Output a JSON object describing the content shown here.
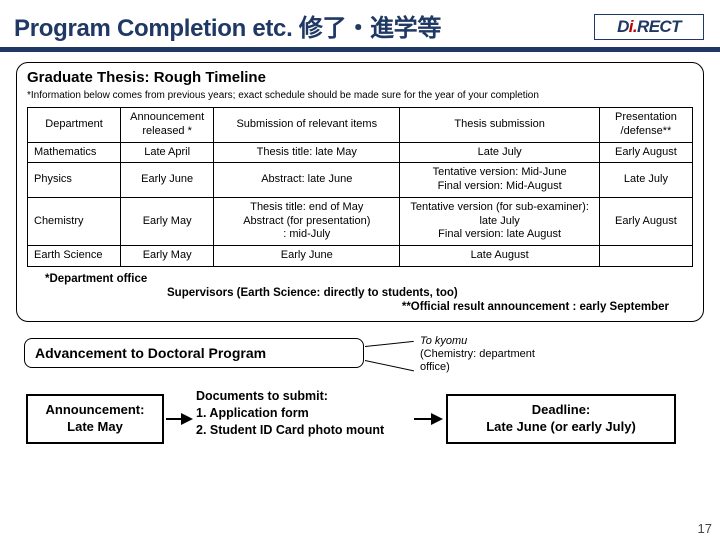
{
  "logo_text_pre": "D",
  "logo_text_i": "i.",
  "logo_text_post": "RECT",
  "title": "Program Completion etc. 修了・進学等",
  "section1": {
    "heading": "Graduate Thesis: Rough Timeline",
    "note": "*Information below comes from previous years; exact schedule should be made sure for the year of your completion",
    "columns": [
      "Department",
      "Announcement released *",
      "Submission of relevant items",
      "Thesis submission",
      "Presentation /defense**"
    ],
    "col_widths_pct": [
      14,
      14,
      28,
      30,
      14
    ],
    "rows": [
      {
        "dept": "Mathematics",
        "ann": "Late April",
        "sub": "Thesis title: late  May",
        "thesis": "Late July",
        "pres": "Early August"
      },
      {
        "dept": "Physics",
        "ann": "Early June",
        "sub": "Abstract: late June",
        "thesis": "Tentative version: Mid-June\nFinal version: Mid-August",
        "pres": "Late July"
      },
      {
        "dept": "Chemistry",
        "ann": "Early May",
        "sub": "Thesis title: end of May\nAbstract (for presentation)\n: mid-July",
        "thesis": "Tentative version (for sub-examiner):\nlate July\nFinal version: late August",
        "pres": "Early August"
      },
      {
        "dept": "Earth Science",
        "ann": "Early May",
        "sub": "Early June",
        "thesis": "Late August",
        "pres": ""
      }
    ],
    "dept_note": "*Department office",
    "supervisors": "Supervisors (Earth Science: directly to students, too)",
    "official_result": "**Official result announcement : early September"
  },
  "section2": {
    "heading": "Advancement to Doctoral Program",
    "kyomu_title": "To kyomu",
    "kyomu_sub": "(Chemistry: department office)",
    "announcement_label": "Announcement:\nLate May",
    "docs_heading": "Documents to submit:",
    "docs_1": "1. Application form",
    "docs_2": "2. Student ID Card photo mount",
    "deadline_label": "Deadline:\nLate June (or early July)"
  },
  "slide_number": "17",
  "colors": {
    "title_color": "#1f3864",
    "underline_color": "#1f3864",
    "logo_border": "#1f3864",
    "logo_accent": "#c00000",
    "border_color": "#000000",
    "background": "#ffffff"
  }
}
